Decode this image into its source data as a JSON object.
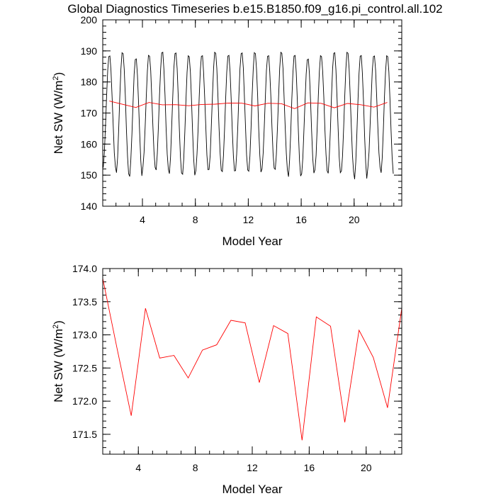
{
  "title": "Global Diagnostics Timeseries b.e15.B1850.f09_g16.pi_control.all.102",
  "chart_data": [
    {
      "type": "line",
      "xlabel": "Model Year",
      "ylabel_base": "Net SW (W/m",
      "ylabel_sup": "2",
      "ylabel_end": ")",
      "xlim": [
        1,
        23.6
      ],
      "ylim": [
        140,
        200
      ],
      "xticks": [
        4,
        8,
        12,
        16,
        20
      ],
      "yticks": [
        140,
        150,
        160,
        170,
        180,
        190,
        200
      ],
      "series": [
        {
          "kind": "monthly",
          "color": "#000000",
          "start_year": 1.04,
          "months_per_year": 12,
          "annual_max": [
            189,
            190,
            188,
            189,
            190,
            190,
            189,
            189,
            190,
            189,
            190,
            190,
            189,
            190,
            189,
            188,
            189,
            190,
            190,
            189,
            189,
            189
          ],
          "annual_min": [
            152,
            150,
            149,
            152,
            151,
            150,
            149.5,
            151,
            151,
            150.5,
            151,
            150.5,
            151.5,
            151,
            148.8,
            150,
            151,
            150,
            150.5,
            148,
            152,
            150
          ]
        },
        {
          "kind": "annual",
          "color": "#ff0000",
          "x": [
            1.5,
            2.5,
            3.5,
            4.5,
            5.5,
            6.5,
            7.5,
            8.5,
            9.5,
            10.5,
            11.5,
            12.5,
            13.5,
            14.5,
            15.5,
            16.5,
            17.5,
            18.5,
            19.5,
            20.5,
            21.5,
            22.5
          ],
          "y": [
            173.85,
            172.8,
            171.78,
            173.4,
            172.65,
            172.69,
            172.35,
            172.77,
            172.85,
            173.22,
            173.18,
            172.28,
            173.14,
            173.02,
            171.41,
            173.27,
            173.13,
            171.68,
            173.07,
            172.66,
            171.9,
            173.4
          ]
        }
      ]
    },
    {
      "type": "line",
      "xlabel": "Model Year",
      "ylabel_base": "Net SW (W/m",
      "ylabel_sup": "2",
      "ylabel_end": ")",
      "xlim": [
        1.5,
        22.5
      ],
      "ylim": [
        171.2,
        174.0
      ],
      "xticks": [
        4,
        8,
        12,
        16,
        20
      ],
      "yticks": [
        171.5,
        172.0,
        172.5,
        173.0,
        173.5,
        174.0
      ],
      "ytick_labels": [
        "171.5",
        "172.0",
        "172.5",
        "173.0",
        "173.5",
        "174.0"
      ],
      "series": [
        {
          "kind": "annual",
          "color": "#ff0000",
          "x": [
            1.5,
            2.5,
            3.5,
            4.5,
            5.5,
            6.5,
            7.5,
            8.5,
            9.5,
            10.5,
            11.5,
            12.5,
            13.5,
            14.5,
            15.5,
            16.5,
            17.5,
            18.5,
            19.5,
            20.5,
            21.5,
            22.5
          ],
          "y": [
            173.85,
            172.8,
            171.78,
            173.4,
            172.65,
            172.69,
            172.35,
            172.77,
            172.85,
            173.22,
            173.18,
            172.28,
            173.14,
            173.02,
            171.41,
            173.27,
            173.13,
            171.68,
            173.07,
            172.66,
            171.9,
            173.4
          ]
        }
      ]
    }
  ]
}
